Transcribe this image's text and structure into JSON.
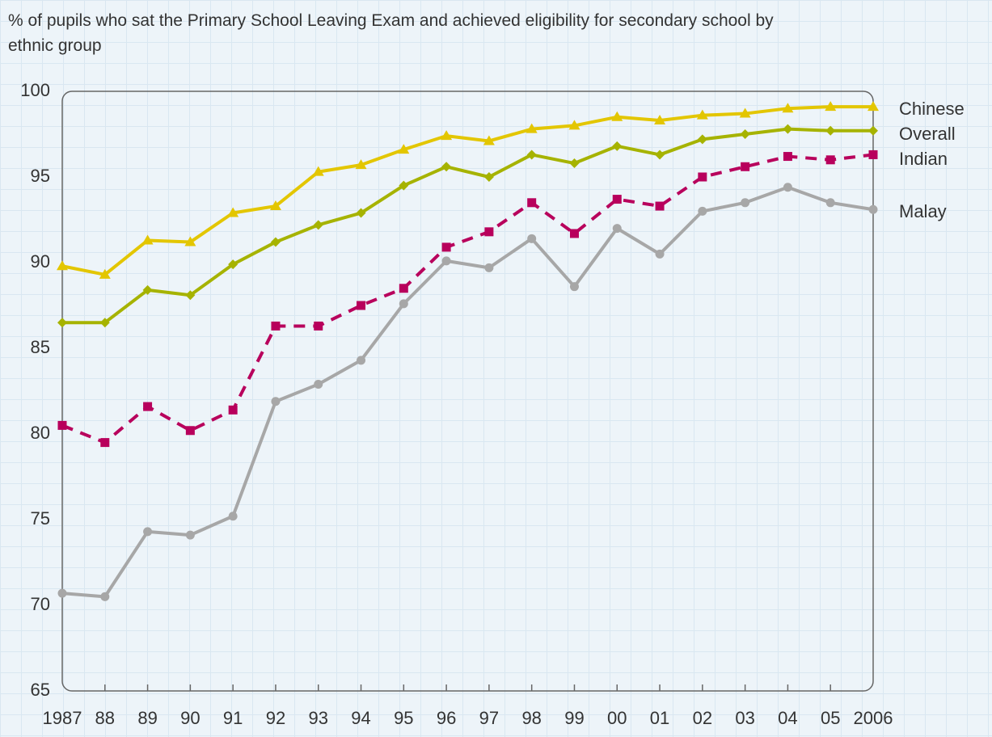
{
  "chart_data": {
    "type": "line",
    "title": "% of pupils who sat the Primary School Leaving Exam and achieved eligibility for secondary school by ethnic group",
    "categories": [
      "1987",
      "88",
      "89",
      "90",
      "91",
      "92",
      "93",
      "94",
      "95",
      "96",
      "97",
      "98",
      "99",
      "00",
      "01",
      "02",
      "03",
      "04",
      "05",
      "2006"
    ],
    "series": [
      {
        "name": "Chinese",
        "color": "#e3c600",
        "marker": "triangle",
        "dashed": false,
        "values": [
          89.8,
          89.3,
          91.3,
          91.2,
          92.9,
          93.3,
          95.3,
          95.7,
          96.6,
          97.4,
          97.1,
          97.8,
          98.0,
          98.5,
          98.3,
          98.6,
          98.7,
          99.0,
          99.1,
          99.1
        ]
      },
      {
        "name": "Overall",
        "color": "#a6b300",
        "marker": "diamond",
        "dashed": false,
        "values": [
          86.5,
          86.5,
          88.4,
          88.1,
          89.9,
          91.2,
          92.2,
          92.9,
          94.5,
          95.6,
          95.0,
          96.3,
          95.8,
          96.8,
          96.3,
          97.2,
          97.5,
          97.8,
          97.7,
          97.7
        ]
      },
      {
        "name": "Indian",
        "color": "#b8005c",
        "marker": "square",
        "dashed": true,
        "values": [
          80.5,
          79.5,
          81.6,
          80.2,
          81.4,
          86.3,
          86.3,
          87.5,
          88.5,
          90.9,
          91.8,
          93.5,
          91.7,
          93.7,
          93.3,
          95.0,
          95.6,
          96.2,
          96.0,
          96.3
        ]
      },
      {
        "name": "Malay",
        "color": "#a7a7a7",
        "marker": "circle",
        "dashed": false,
        "values": [
          70.7,
          70.5,
          74.3,
          74.1,
          75.2,
          81.9,
          82.9,
          84.3,
          87.6,
          90.1,
          89.7,
          91.4,
          88.6,
          92.0,
          90.5,
          93.0,
          93.5,
          94.4,
          93.5,
          93.1
        ]
      }
    ],
    "ylim": [
      65,
      100
    ],
    "yticks": [
      65,
      70,
      75,
      80,
      85,
      90,
      95,
      100
    ],
    "grid": false
  }
}
